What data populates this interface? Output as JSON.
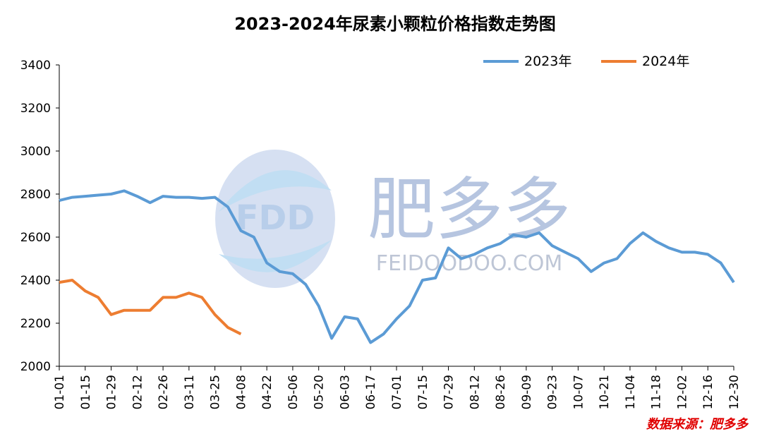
{
  "chart_data": {
    "type": "line",
    "title": "2023-2024年尿素小颗粒价格指数走势图",
    "categories": [
      "01-01",
      null,
      "01-15",
      null,
      "01-29",
      null,
      "02-12",
      null,
      "02-26",
      null,
      "03-11",
      null,
      "03-25",
      null,
      "04-08",
      null,
      "04-22",
      null,
      "05-06",
      null,
      "05-20",
      null,
      "06-03",
      null,
      "06-17",
      null,
      "07-01",
      null,
      "07-15",
      null,
      "07-29",
      null,
      "08-12",
      null,
      "08-26",
      null,
      "09-09",
      null,
      "09-23",
      null,
      "10-07",
      null,
      "10-21",
      null,
      "11-04",
      null,
      "11-18",
      null,
      "12-02",
      null,
      "12-16",
      null,
      "12-30"
    ],
    "series": [
      {
        "name": "2023年",
        "color": "#5b9bd5",
        "values": [
          2770,
          2785,
          2790,
          2795,
          2800,
          2815,
          2790,
          2760,
          2790,
          2785,
          2785,
          2780,
          2785,
          2740,
          2630,
          2600,
          2480,
          2440,
          2430,
          2380,
          2280,
          2130,
          2230,
          2220,
          2110,
          2150,
          2220,
          2280,
          2400,
          2410,
          2550,
          2500,
          2520,
          2550,
          2570,
          2610,
          2600,
          2620,
          2560,
          2530,
          2500,
          2440,
          2480,
          2500,
          2570,
          2620,
          2580,
          2550,
          2530,
          2530,
          2520,
          2480,
          2390
        ]
      },
      {
        "name": "2024年",
        "color": "#ed7d31",
        "values": [
          2390,
          2400,
          2350,
          2320,
          2240,
          2260,
          2260,
          2260,
          2320,
          2320,
          2340,
          2320,
          2240,
          2180,
          2150,
          null,
          null,
          null,
          null,
          null,
          null,
          null,
          null,
          null,
          null,
          null,
          null,
          null,
          null,
          null,
          null,
          null,
          null,
          null,
          null,
          null,
          null,
          null,
          null,
          null,
          null,
          null,
          null,
          null,
          null,
          null,
          null,
          null,
          null,
          null,
          null,
          null,
          null
        ]
      }
    ],
    "ylim": [
      2000,
      3400
    ],
    "yticks": [
      2000,
      2200,
      2400,
      2600,
      2800,
      3000,
      3200,
      3400
    ],
    "grid": false,
    "legend": "top-right",
    "watermark": {
      "logo": "FDD",
      "name": "肥多多",
      "site": "FEIDOODOO.COM"
    },
    "source": "数据来源：肥多多"
  }
}
